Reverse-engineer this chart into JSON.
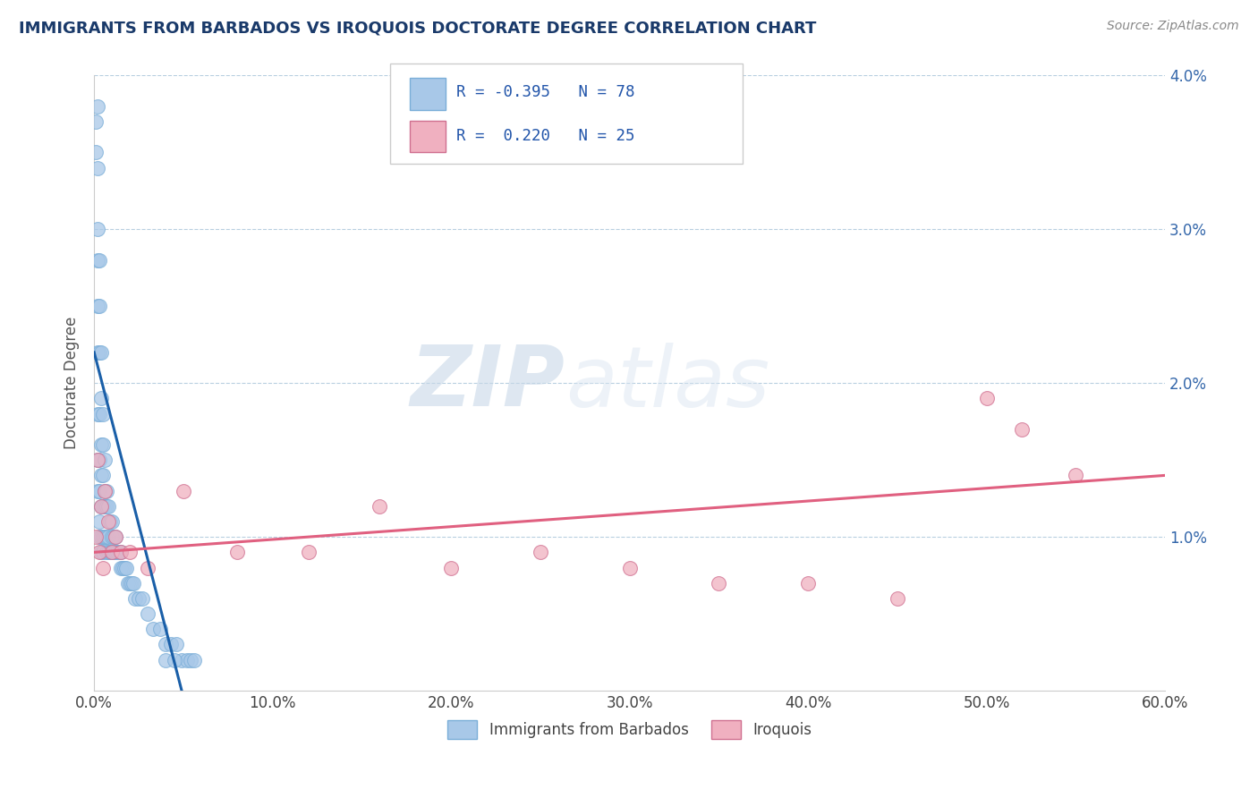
{
  "title": "IMMIGRANTS FROM BARBADOS VS IROQUOIS DOCTORATE DEGREE CORRELATION CHART",
  "source_text": "Source: ZipAtlas.com",
  "ylabel": "Doctorate Degree",
  "watermark_zip": "ZIP",
  "watermark_atlas": "atlas",
  "xlim": [
    0.0,
    0.6
  ],
  "ylim": [
    0.0,
    0.04
  ],
  "xtick_labels": [
    "0.0%",
    "10.0%",
    "20.0%",
    "30.0%",
    "40.0%",
    "50.0%",
    "60.0%"
  ],
  "xtick_vals": [
    0.0,
    0.1,
    0.2,
    0.3,
    0.4,
    0.5,
    0.6
  ],
  "ytick_labels": [
    "1.0%",
    "2.0%",
    "3.0%",
    "4.0%"
  ],
  "ytick_vals": [
    0.01,
    0.02,
    0.03,
    0.04
  ],
  "color_blue": "#a8c8e8",
  "color_pink": "#f0b0c0",
  "color_blue_line": "#1a5fa8",
  "color_pink_line": "#e06080",
  "title_color": "#1a3a6a",
  "source_color": "#888888",
  "background_color": "#ffffff",
  "blue_scatter_x": [
    0.001,
    0.001,
    0.002,
    0.002,
    0.002,
    0.002,
    0.002,
    0.002,
    0.002,
    0.002,
    0.002,
    0.003,
    0.003,
    0.003,
    0.003,
    0.003,
    0.003,
    0.003,
    0.003,
    0.004,
    0.004,
    0.004,
    0.004,
    0.004,
    0.004,
    0.004,
    0.005,
    0.005,
    0.005,
    0.005,
    0.005,
    0.005,
    0.006,
    0.006,
    0.006,
    0.006,
    0.007,
    0.007,
    0.007,
    0.007,
    0.008,
    0.008,
    0.008,
    0.009,
    0.009,
    0.01,
    0.01,
    0.01,
    0.011,
    0.011,
    0.012,
    0.012,
    0.013,
    0.014,
    0.015,
    0.015,
    0.016,
    0.017,
    0.018,
    0.019,
    0.02,
    0.021,
    0.022,
    0.023,
    0.025,
    0.027,
    0.03,
    0.033,
    0.037,
    0.04,
    0.043,
    0.046,
    0.049,
    0.052,
    0.054,
    0.056,
    0.04,
    0.045
  ],
  "blue_scatter_y": [
    0.037,
    0.035,
    0.038,
    0.034,
    0.03,
    0.028,
    0.025,
    0.022,
    0.018,
    0.015,
    0.013,
    0.028,
    0.025,
    0.022,
    0.018,
    0.015,
    0.013,
    0.011,
    0.01,
    0.022,
    0.019,
    0.016,
    0.014,
    0.012,
    0.01,
    0.009,
    0.018,
    0.016,
    0.014,
    0.012,
    0.01,
    0.009,
    0.015,
    0.013,
    0.012,
    0.01,
    0.013,
    0.012,
    0.01,
    0.009,
    0.012,
    0.01,
    0.009,
    0.011,
    0.009,
    0.011,
    0.01,
    0.009,
    0.01,
    0.009,
    0.01,
    0.009,
    0.009,
    0.009,
    0.009,
    0.008,
    0.008,
    0.008,
    0.008,
    0.007,
    0.007,
    0.007,
    0.007,
    0.006,
    0.006,
    0.006,
    0.005,
    0.004,
    0.004,
    0.003,
    0.003,
    0.003,
    0.002,
    0.002,
    0.002,
    0.002,
    0.002,
    0.002
  ],
  "pink_scatter_x": [
    0.001,
    0.002,
    0.003,
    0.004,
    0.005,
    0.006,
    0.008,
    0.01,
    0.012,
    0.015,
    0.02,
    0.03,
    0.05,
    0.08,
    0.12,
    0.16,
    0.2,
    0.25,
    0.3,
    0.35,
    0.4,
    0.45,
    0.5,
    0.52,
    0.55
  ],
  "pink_scatter_y": [
    0.01,
    0.015,
    0.009,
    0.012,
    0.008,
    0.013,
    0.011,
    0.009,
    0.01,
    0.009,
    0.009,
    0.008,
    0.013,
    0.009,
    0.009,
    0.012,
    0.008,
    0.009,
    0.008,
    0.007,
    0.007,
    0.006,
    0.019,
    0.017,
    0.014
  ],
  "blue_line_x": [
    0.0,
    0.058
  ],
  "blue_line_y_start": 0.022,
  "blue_line_y_end": -0.004,
  "pink_line_x": [
    0.0,
    0.6
  ],
  "pink_line_y_start": 0.009,
  "pink_line_y_end": 0.014
}
